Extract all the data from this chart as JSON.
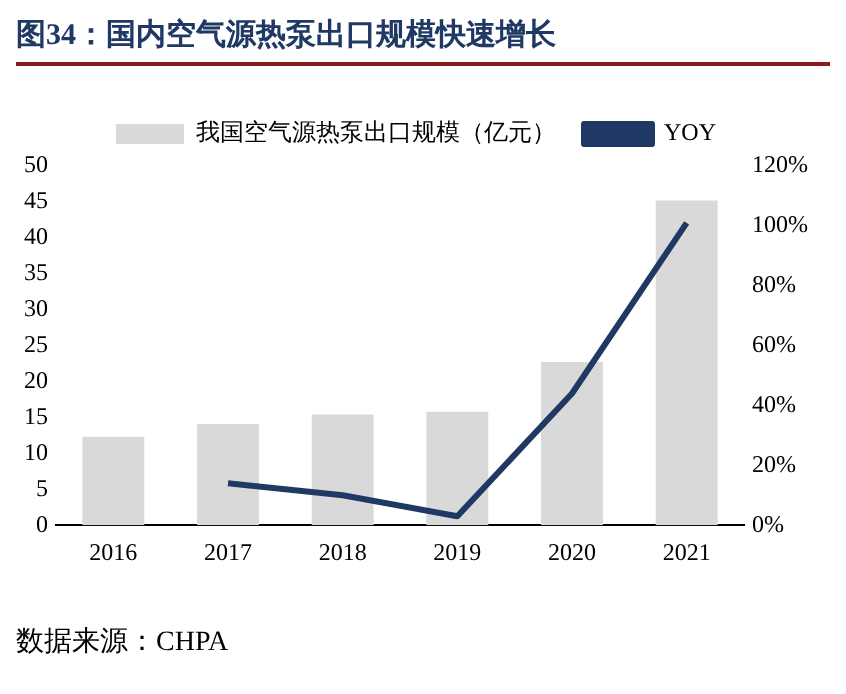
{
  "chart_data": {
    "type": "bar",
    "title": "图34：国内空气源热泵出口规模快速增长",
    "categories": [
      "2016",
      "2017",
      "2018",
      "2019",
      "2020",
      "2021"
    ],
    "series": [
      {
        "name": "我国空气源热泵出口规模（亿元）",
        "color": "#d9d9d9",
        "values": [
          12.3,
          14.1,
          15.4,
          15.8,
          22.7,
          45.2
        ]
      },
      {
        "name": "YOY",
        "type": "line",
        "axis": "y2",
        "color": "#1f3864",
        "values": [
          null,
          14,
          10,
          3,
          44,
          101
        ]
      }
    ],
    "ylim": [
      0,
      50
    ],
    "yticks": [
      0,
      5,
      10,
      15,
      20,
      25,
      30,
      35,
      40,
      45,
      50
    ],
    "y2lim": [
      0,
      120
    ],
    "y2ticks": [
      {
        "value": 0,
        "label": "0%"
      },
      {
        "value": 20,
        "label": "20%"
      },
      {
        "value": 40,
        "label": "40%"
      },
      {
        "value": 60,
        "label": "60%"
      },
      {
        "value": 80,
        "label": "80%"
      },
      {
        "value": 100,
        "label": "100%"
      },
      {
        "value": 120,
        "label": "120%"
      }
    ],
    "legend": "top",
    "grid": false,
    "annotations": [
      "数据来源：CHPA"
    ]
  }
}
